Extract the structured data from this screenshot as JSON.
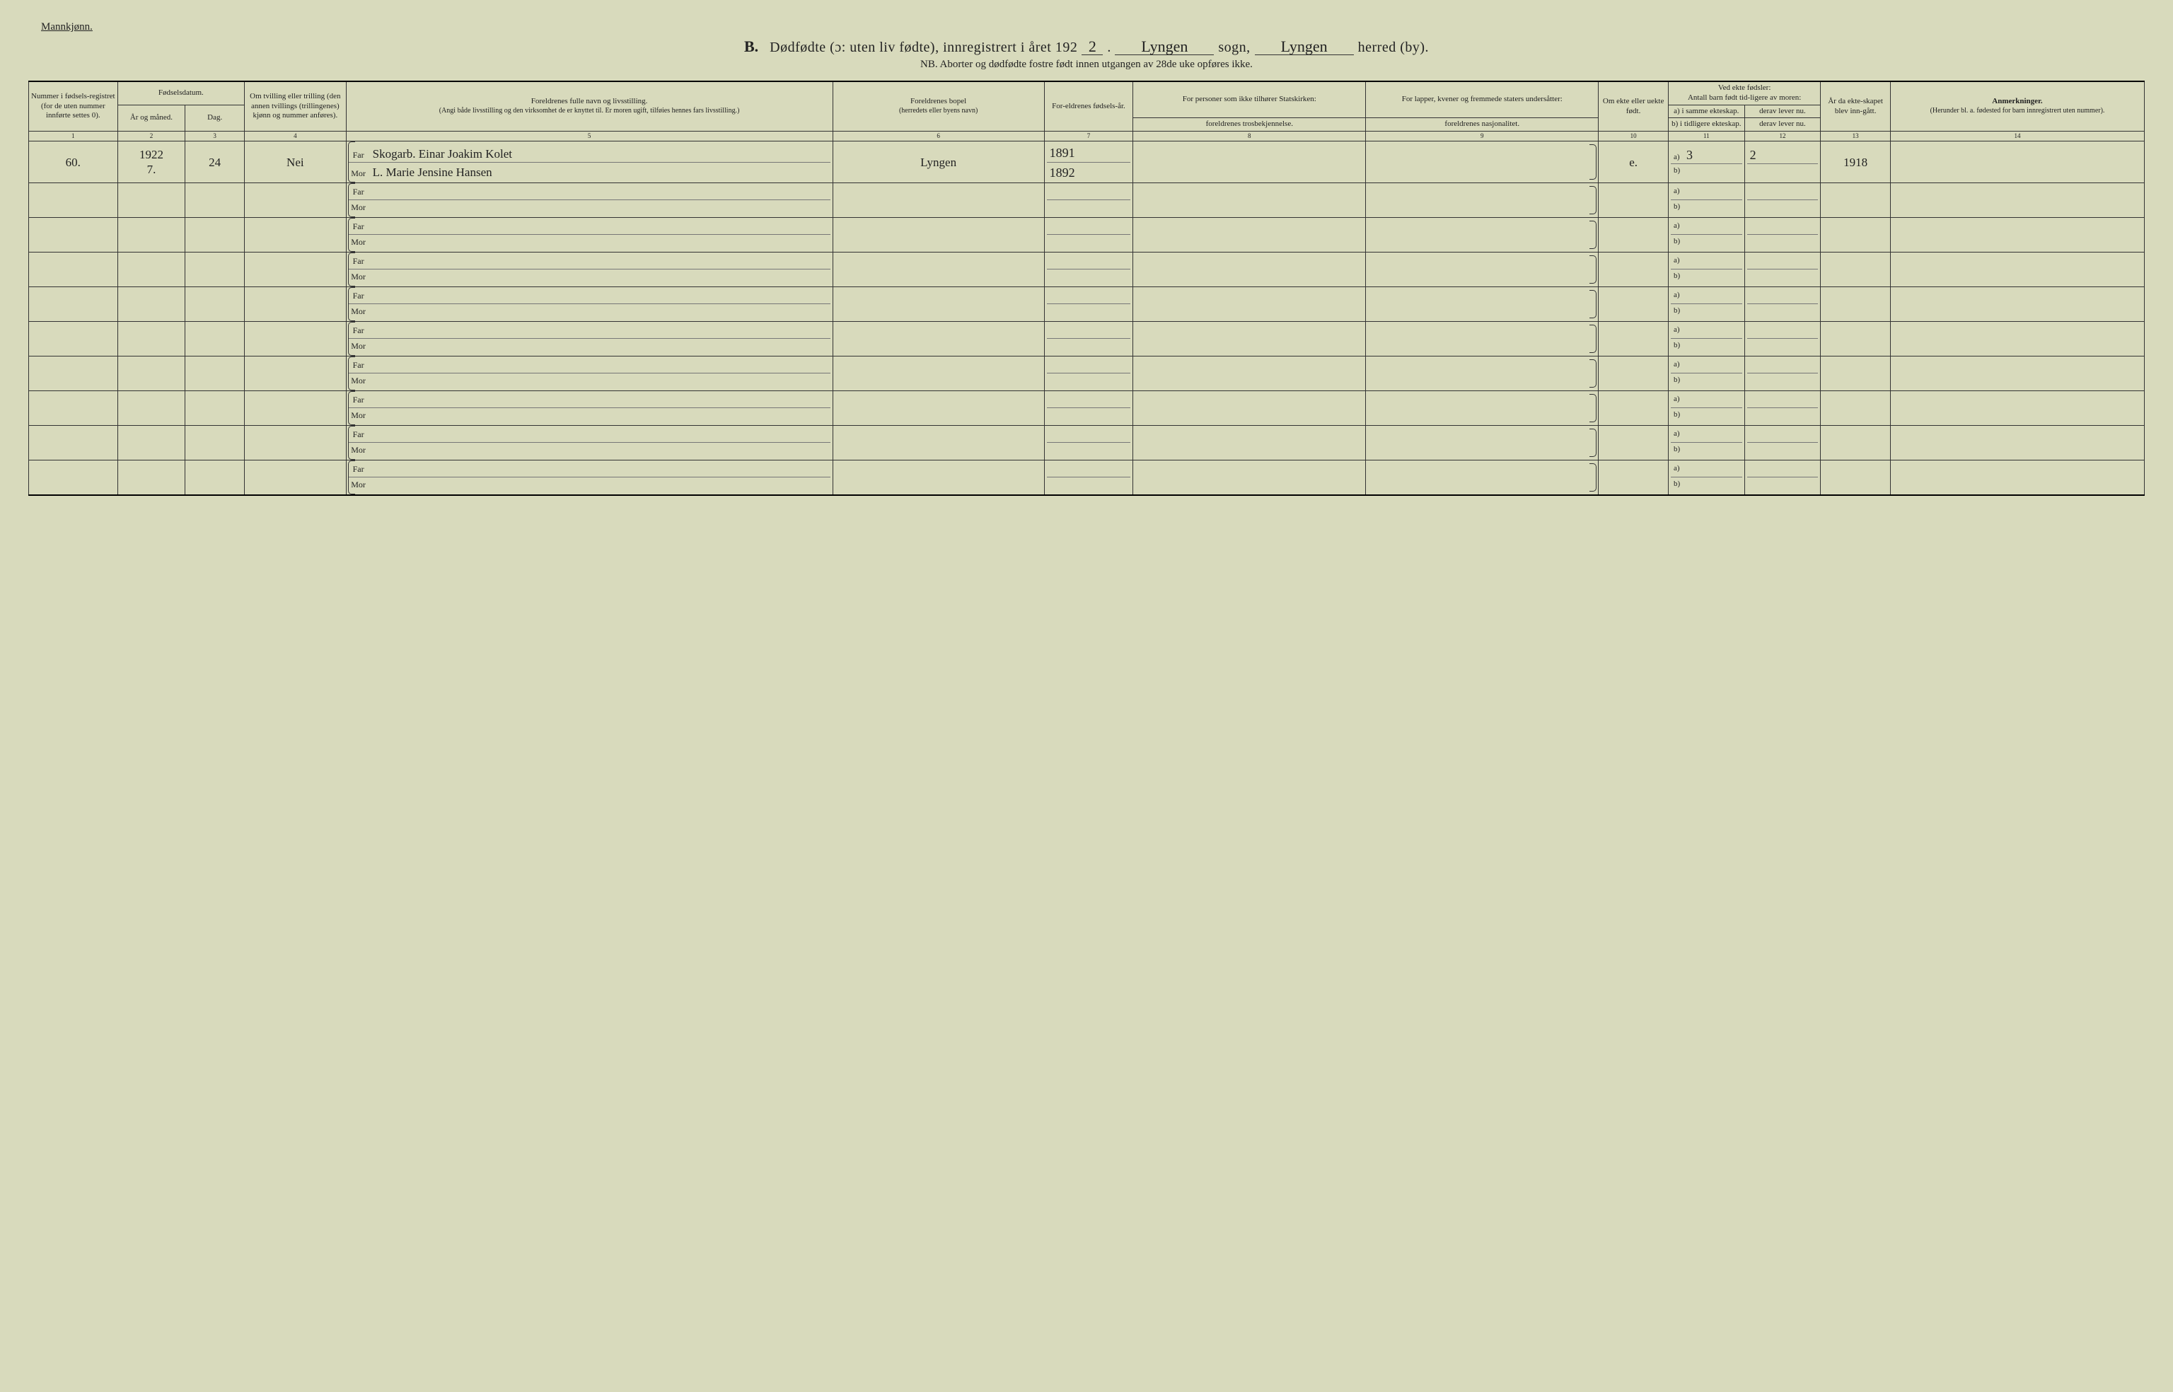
{
  "page": {
    "background_color": "#d8dabc",
    "rule_color": "#333333",
    "font_family_print": "Times New Roman",
    "font_family_script": "Brush Script MT"
  },
  "header": {
    "gender_label": "Mannkjønn.",
    "section_letter": "B.",
    "title_part1": "Dødfødte (ɔ: uten liv fødte), innregistrert i året 192",
    "year_suffix": "2",
    "sogn_value": "Lyngen",
    "sogn_label": "sogn,",
    "herred_value": "Lyngen",
    "herred_label": "herred (by).",
    "subtitle": "NB.  Aborter og dødfødte fostre født innen utgangen av 28de uke opføres ikke."
  },
  "columns": {
    "c1": "Nummer i fødsels-registret (for de uten nummer innførte settes 0).",
    "c23_group": "Fødselsdatum.",
    "c2": "År og måned.",
    "c3": "Dag.",
    "c4": "Om tvilling eller trilling (den annen tvillings (trillingenes) kjønn og nummer anføres).",
    "c5_title": "Foreldrenes fulle navn og livsstilling.",
    "c5_sub": "(Angi både livsstilling og den virksomhet de er knyttet til. Er moren ugift, tilføies hennes fars livsstilling.)",
    "c6_title": "Foreldrenes bopel",
    "c6_sub": "(herredets eller byens navn)",
    "c7": "For-eldrenes fødsels-år.",
    "c8_top": "For personer som ikke tilhører Statskirken:",
    "c8_sub": "foreldrenes trosbekjennelse.",
    "c9_top": "For lapper, kvener og fremmede staters undersåtter:",
    "c9_sub": "foreldrenes nasjonalitet.",
    "c10": "Om ekte eller uekte født.",
    "c1112_top": "Ved ekte fødsler:\nAntall barn født tid-ligere av moren:",
    "c11": "a) i samme ekteskap.",
    "c11b": "b) i tidligere ekteskap.",
    "c12": "derav lever nu.",
    "c12b": "derav lever nu.",
    "c13": "År da ekte-skapet blev inn-gått.",
    "c14_title": "Anmerkninger.",
    "c14_sub": "(Herunder bl. a. fødested for barn innregistrert uten nummer).",
    "nums": [
      "1",
      "2",
      "3",
      "4",
      "5",
      "6",
      "7",
      "8",
      "9",
      "10",
      "11",
      "12",
      "13",
      "14"
    ]
  },
  "labels": {
    "far": "Far",
    "mor": "Mor",
    "a": "a)",
    "b": "b)"
  },
  "rows": [
    {
      "num": "60.",
      "year_month": "1922\n7.",
      "day": "24",
      "twin": "Nei",
      "far": "Skogarb. Einar Joakim Kolet",
      "mor": "L. Marie Jensine Hansen",
      "bopel": "Lyngen",
      "far_year": "1891",
      "mor_year": "1892",
      "tros": "",
      "nasj": "",
      "ekte": "e.",
      "a_val": "3",
      "a_lever": "2",
      "b_val": "",
      "b_lever": "",
      "ekteskap_aar": "1918",
      "anm": ""
    },
    {},
    {},
    {},
    {},
    {},
    {},
    {},
    {},
    {}
  ]
}
